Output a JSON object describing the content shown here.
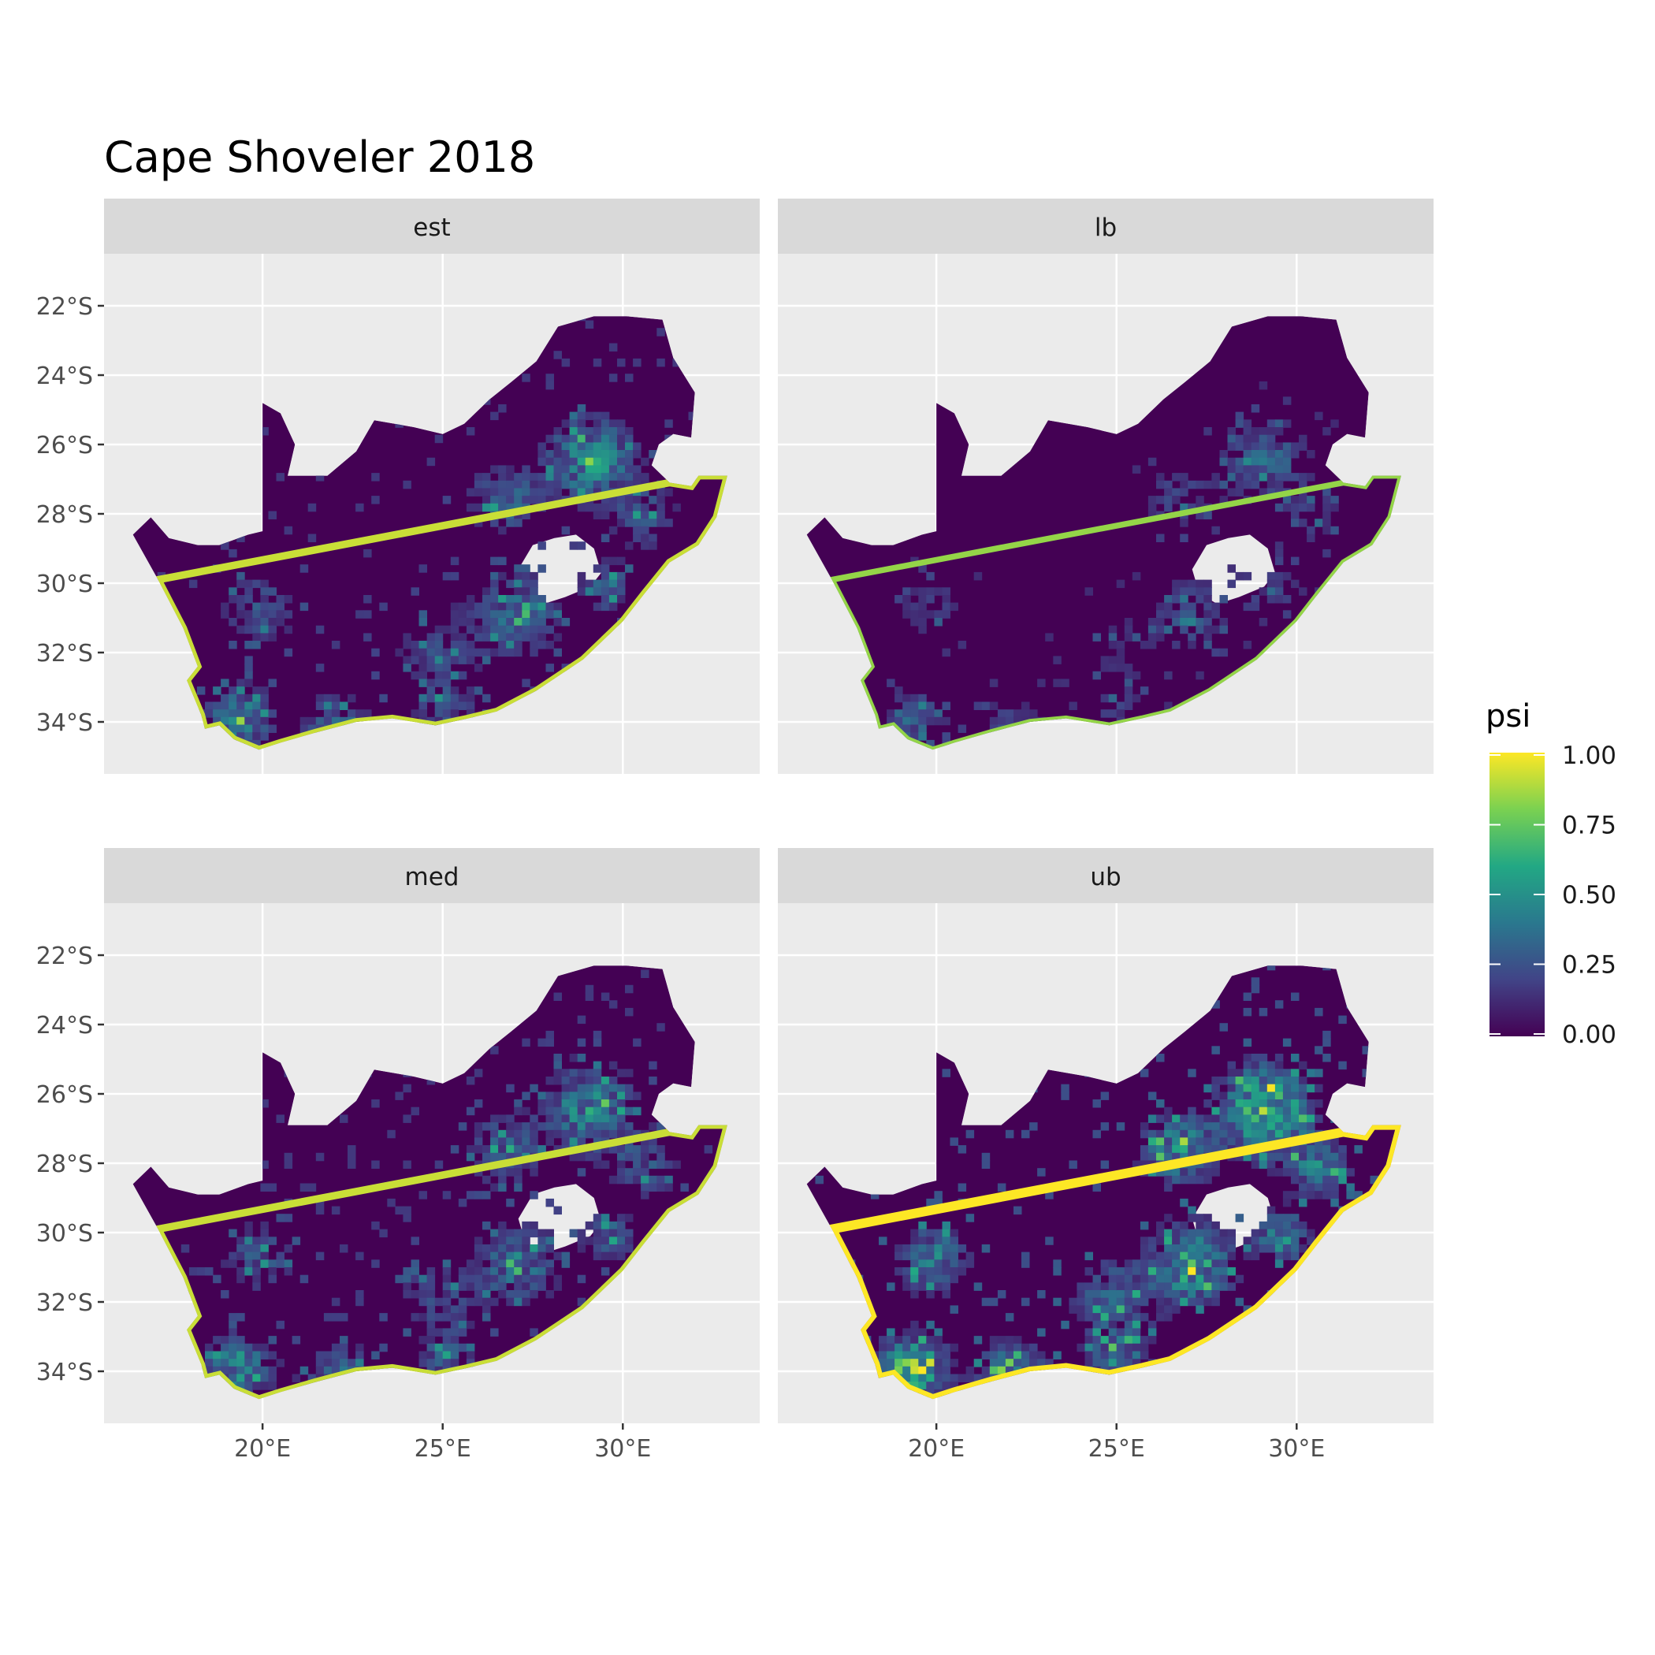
{
  "title": "Cape Shoveler 2018",
  "panels": [
    {
      "label": "est",
      "intensity": 0.55
    },
    {
      "label": "lb",
      "intensity": 0.35
    },
    {
      "label": "med",
      "intensity": 0.55
    },
    {
      "label": "ub",
      "intensity": 0.8
    }
  ],
  "axes": {
    "x_ticks": [
      "20°E",
      "25°E",
      "30°E"
    ],
    "y_ticks": [
      "22°S",
      "24°S",
      "26°S",
      "28°S",
      "30°S",
      "32°S",
      "34°S"
    ]
  },
  "legend": {
    "title": "psi",
    "ticks": [
      "1.00",
      "0.75",
      "0.50",
      "0.25",
      "0.00"
    ],
    "colors": [
      "#fde725",
      "#7ad151",
      "#22a884",
      "#2a788e",
      "#414487",
      "#440154"
    ]
  },
  "chart_data": {
    "type": "heatmap",
    "title": "Cape Shoveler 2018",
    "facets": [
      "est",
      "lb",
      "med",
      "ub"
    ],
    "color_variable": "psi",
    "color_range": [
      0,
      1
    ],
    "x_range_lon": [
      15.6,
      33.8
    ],
    "y_range_lat": [
      -35.5,
      -20.5
    ],
    "grid": true,
    "legend_position": "right"
  }
}
